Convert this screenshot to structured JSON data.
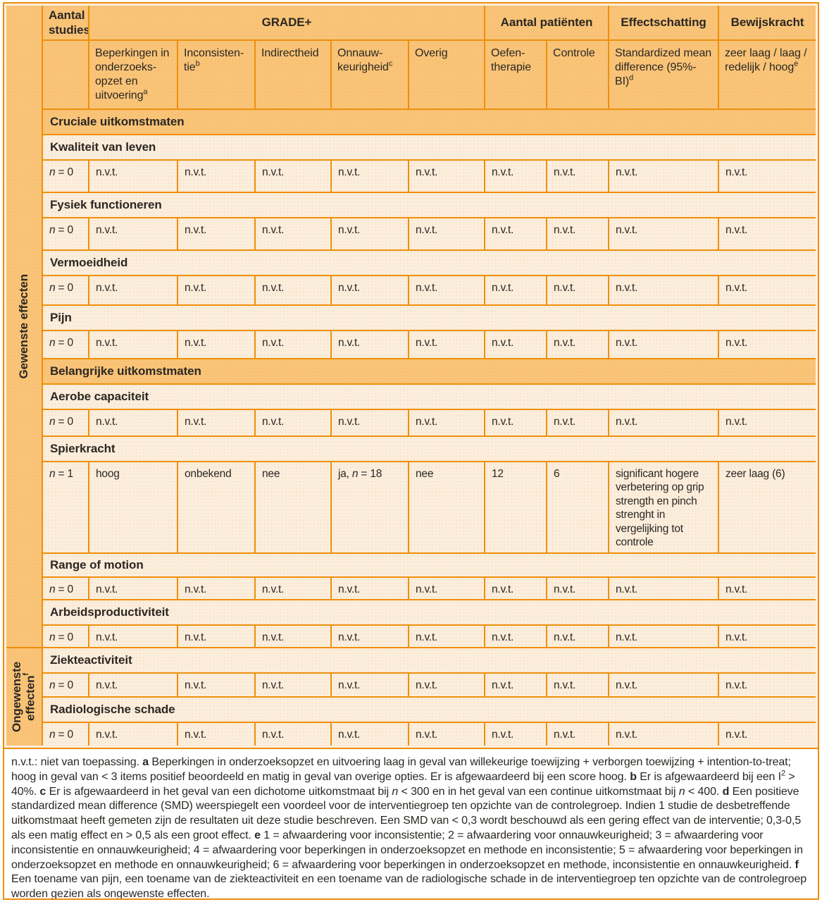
{
  "figure": {
    "colors": {
      "border_orange": "#ee8f0b",
      "header_fill": "#f9c478",
      "cell_fill": "#fceedd",
      "footnote_bg": "#ffffff",
      "text": "#2b2723"
    },
    "header": {
      "studies": "Aantal studies",
      "groups": [
        {
          "label": "GRADE+"
        },
        {
          "label": "Aantal patiënten"
        },
        {
          "label": "Effectschatting"
        },
        {
          "label": "Bewijskracht"
        }
      ],
      "subheaders": [
        {
          "text": "Beperkingen in onderzoeks-opzet en uitvoering",
          "sup": "a"
        },
        {
          "text": "Inconsisten-tie",
          "sup": "b"
        },
        {
          "text": "Indirectheid",
          "sup": ""
        },
        {
          "text": "Onnauw-keurigheid",
          "sup": "c"
        },
        {
          "text": "Overig",
          "sup": ""
        },
        {
          "text": "Oefen-therapie",
          "sup": ""
        },
        {
          "text": "Controle",
          "sup": ""
        },
        {
          "text": "Standardized mean difference (95%-BI)",
          "sup": "d"
        },
        {
          "text": "zeer laag / laag / redelijk / hoog",
          "sup": "e"
        }
      ]
    },
    "side_labels": [
      {
        "text": "Gewenste effecten",
        "sup": ""
      },
      {
        "text": "Ongewenste effecten",
        "sup": "f"
      }
    ],
    "rows": [
      {
        "kind": "section",
        "label": "Cruciale uitkomstmaten"
      },
      {
        "kind": "outcome",
        "label": "Kwaliteit van leven"
      },
      {
        "kind": "data",
        "cells": [
          "n = 0",
          "n.v.t.",
          "n.v.t.",
          "n.v.t.",
          "n.v.t.",
          "n.v.t.",
          "n.v.t.",
          "n.v.t.",
          "n.v.t.",
          "n.v.t."
        ]
      },
      {
        "kind": "outcome",
        "label": "Fysiek functioneren"
      },
      {
        "kind": "data",
        "cells": [
          "n = 0",
          "n.v.t.",
          "n.v.t.",
          "n.v.t.",
          "n.v.t.",
          "n.v.t.",
          "n.v.t.",
          "n.v.t.",
          "n.v.t.",
          "n.v.t."
        ]
      },
      {
        "kind": "outcome",
        "label": "Vermoeidheid"
      },
      {
        "kind": "data",
        "cells": [
          "n = 0",
          "n.v.t.",
          "n.v.t.",
          "n.v.t.",
          "n.v.t.",
          "n.v.t.",
          "n.v.t.",
          "n.v.t.",
          "n.v.t.",
          "n.v.t."
        ]
      },
      {
        "kind": "outcome",
        "label": "Pijn"
      },
      {
        "kind": "data",
        "cells": [
          "n = 0",
          "n.v.t.",
          "n.v.t.",
          "n.v.t.",
          "n.v.t.",
          "n.v.t.",
          "n.v.t.",
          "n.v.t.",
          "n.v.t.",
          "n.v.t."
        ]
      },
      {
        "kind": "section",
        "label": "Belangrijke uitkomstmaten"
      },
      {
        "kind": "outcome",
        "label": "Aerobe capaciteit"
      },
      {
        "kind": "data",
        "cells": [
          "n = 0",
          "n.v.t.",
          "n.v.t.",
          "n.v.t.",
          "n.v.t.",
          "n.v.t.",
          "n.v.t.",
          "n.v.t.",
          "n.v.t.",
          "n.v.t."
        ]
      },
      {
        "kind": "outcome",
        "label": "Spierkracht"
      },
      {
        "kind": "data",
        "cells": [
          "n = 1",
          "hoog",
          "onbekend",
          "nee",
          "ja, n = 18",
          "nee",
          "12",
          "6",
          "significant hogere verbetering op grip strength en pinch strenght in vergelijking tot controle",
          "zeer laag (6)"
        ]
      },
      {
        "kind": "outcome",
        "label": "Range of motion"
      },
      {
        "kind": "data",
        "cells": [
          "n = 0",
          "n.v.t.",
          "n.v.t.",
          "n.v.t.",
          "n.v.t.",
          "n.v.t.",
          "n.v.t.",
          "n.v.t.",
          "n.v.t.",
          "n.v.t."
        ]
      },
      {
        "kind": "outcome",
        "label": "Arbeidsproductiviteit"
      },
      {
        "kind": "data",
        "cells": [
          "n = 0",
          "n.v.t.",
          "n.v.t.",
          "n.v.t.",
          "n.v.t.",
          "n.v.t.",
          "n.v.t.",
          "n.v.t.",
          "n.v.t.",
          "n.v.t."
        ]
      },
      {
        "kind": "outcome",
        "label": "Ziekteactiviteit"
      },
      {
        "kind": "data",
        "cells": [
          "n = 0",
          "n.v.t.",
          "n.v.t.",
          "n.v.t.",
          "n.v.t.",
          "n.v.t.",
          "n.v.t.",
          "n.v.t.",
          "n.v.t.",
          "n.v.t."
        ]
      },
      {
        "kind": "outcome",
        "label": "Radiologische schade"
      },
      {
        "kind": "data",
        "cells": [
          "n = 0",
          "n.v.t.",
          "n.v.t.",
          "n.v.t.",
          "n.v.t.",
          "n.v.t.",
          "n.v.t.",
          "n.v.t.",
          "n.v.t.",
          "n.v.t."
        ]
      }
    ],
    "footnote": {
      "segments": [
        {
          "t": "n.v.t.: niet van toepassing. "
        },
        {
          "t": "a",
          "b": true
        },
        {
          "t": " Beperkingen in onderzoeksopzet en uitvoering laag in geval van willekeurige toewijzing + verborgen toewijzing + intention-to-treat; hoog in geval van < 3 items positief beoordeeld en matig in geval van overige opties. Er is afgewaardeerd bij een score hoog. "
        },
        {
          "t": "b",
          "b": true
        },
        {
          "t": " Er is afgewaardeerd bij een I"
        },
        {
          "t": "2",
          "sup": true
        },
        {
          "t": " > 40%. "
        },
        {
          "t": "c",
          "b": true
        },
        {
          "t": " Er is afgewaardeerd in het geval van een dichotome uitkomstmaat bij "
        },
        {
          "t": "n",
          "i": true
        },
        {
          "t": " < 300 en in het geval van een continue uitkomstmaat bij "
        },
        {
          "t": "n",
          "i": true
        },
        {
          "t": " < 400. "
        },
        {
          "t": "d",
          "b": true
        },
        {
          "t": " Een positieve standardized mean difference (SMD) weerspiegelt een voordeel voor de interventiegroep ten opzichte van de controlegroep. Indien 1 studie de desbetreffende uitkomstmaat heeft gemeten zijn de resultaten uit deze studie beschreven. Een SMD van < 0,3 wordt beschouwd als een gering effect van de interventie; 0,3-0,5 als een matig effect en > 0,5 als een groot effect. "
        },
        {
          "t": "e",
          "b": true
        },
        {
          "t": " 1 = afwaardering voor inconsistentie; 2 = afwaardering voor onnauwkeurigheid; 3 = afwaardering voor inconsistentie en onnauwkeurigheid; 4 = afwaardering voor beperkingen in onderzoeksopzet en methode en inconsistentie; 5 = afwaardering voor beperkingen in onderzoeksopzet en methode en onnauwkeurigheid; 6 = afwaardering voor beperkingen in onderzoeksopzet en methode, inconsistentie en onnauwkeurigheid. "
        },
        {
          "t": "f",
          "b": true
        },
        {
          "t": " Een toename van pijn, een toename van de ziekteactiviteit en een toename van de radiologische schade in de interventiegroep ten opzichte van de controlegroep worden gezien als ongewenste effecten."
        }
      ]
    }
  }
}
